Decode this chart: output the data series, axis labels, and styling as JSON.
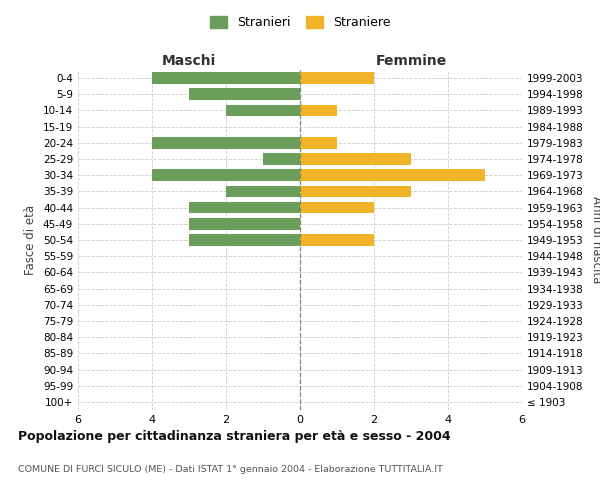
{
  "age_groups": [
    "100+",
    "95-99",
    "90-94",
    "85-89",
    "80-84",
    "75-79",
    "70-74",
    "65-69",
    "60-64",
    "55-59",
    "50-54",
    "45-49",
    "40-44",
    "35-39",
    "30-34",
    "25-29",
    "20-24",
    "15-19",
    "10-14",
    "5-9",
    "0-4"
  ],
  "birth_years": [
    "≤ 1903",
    "1904-1908",
    "1909-1913",
    "1914-1918",
    "1919-1923",
    "1924-1928",
    "1929-1933",
    "1934-1938",
    "1939-1943",
    "1944-1948",
    "1949-1953",
    "1954-1958",
    "1959-1963",
    "1964-1968",
    "1969-1973",
    "1974-1978",
    "1979-1983",
    "1984-1988",
    "1989-1993",
    "1994-1998",
    "1999-2003"
  ],
  "maschi": [
    0,
    0,
    0,
    0,
    0,
    0,
    0,
    0,
    0,
    0,
    3,
    3,
    3,
    2,
    4,
    1,
    4,
    0,
    2,
    3,
    4
  ],
  "femmine": [
    0,
    0,
    0,
    0,
    0,
    0,
    0,
    0,
    0,
    0,
    2,
    0,
    2,
    3,
    5,
    3,
    1,
    0,
    1,
    0,
    2
  ],
  "color_maschi": "#6a9e5a",
  "color_femmine": "#f0b429",
  "legend_stranieri": "Stranieri",
  "legend_straniere": "Straniere",
  "label_maschi": "Maschi",
  "label_femmine": "Femmine",
  "ylabel_left": "Fasce di età",
  "ylabel_right": "Anni di nascita",
  "title": "Popolazione per cittadinanza straniera per età e sesso - 2004",
  "subtitle": "COMUNE DI FURCI SICULO (ME) - Dati ISTAT 1° gennaio 2004 - Elaborazione TUTTITALIA.IT",
  "xlim": 6,
  "background_color": "#ffffff",
  "grid_color": "#cccccc",
  "center_line_color": "#888866"
}
